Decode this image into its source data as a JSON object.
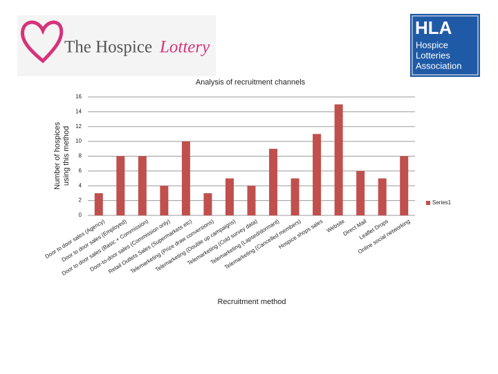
{
  "logos": {
    "left": [
      "The Hospice",
      "Lottery"
    ],
    "right_abbr": "HLA",
    "right_name": [
      "Hospice",
      "Lotteries",
      "Association"
    ]
  },
  "chart_data": {
    "type": "bar",
    "title": "Analysis of recruitment channels",
    "ylabel": [
      "Number of hospices",
      "using this method"
    ],
    "xlabel": "Recruitment method",
    "categories": [
      "Door to door sales (Agency)",
      "Door to door sales (Employed)",
      "Door to door sales (Basic + Commission)",
      "Door-to-door sales (Commission only)",
      "Retail Outlets Sales (Supermarkets etc)",
      "Telemarketing (Prize draw conversions)",
      "Telemarketing (Double up campaigns)",
      "Telemarketing (Cold survey data)",
      "Telemarketing (Lapsed/dormant)",
      "Telemarketing (Cancelled members)",
      "Hospice shops sales",
      "Website",
      "Direct Mail",
      "Leaflet Drops",
      "Online social networking"
    ],
    "series": [
      {
        "name": "Series1",
        "color": "#c0504d",
        "values": [
          3,
          8,
          8,
          4,
          10,
          3,
          5,
          4,
          9,
          5,
          11,
          15,
          6,
          5,
          8
        ]
      }
    ],
    "ylim": [
      0,
      16
    ],
    "yticks": [
      0,
      2,
      4,
      6,
      8,
      10,
      12,
      14,
      16
    ],
    "grid": true,
    "legend": "right"
  }
}
